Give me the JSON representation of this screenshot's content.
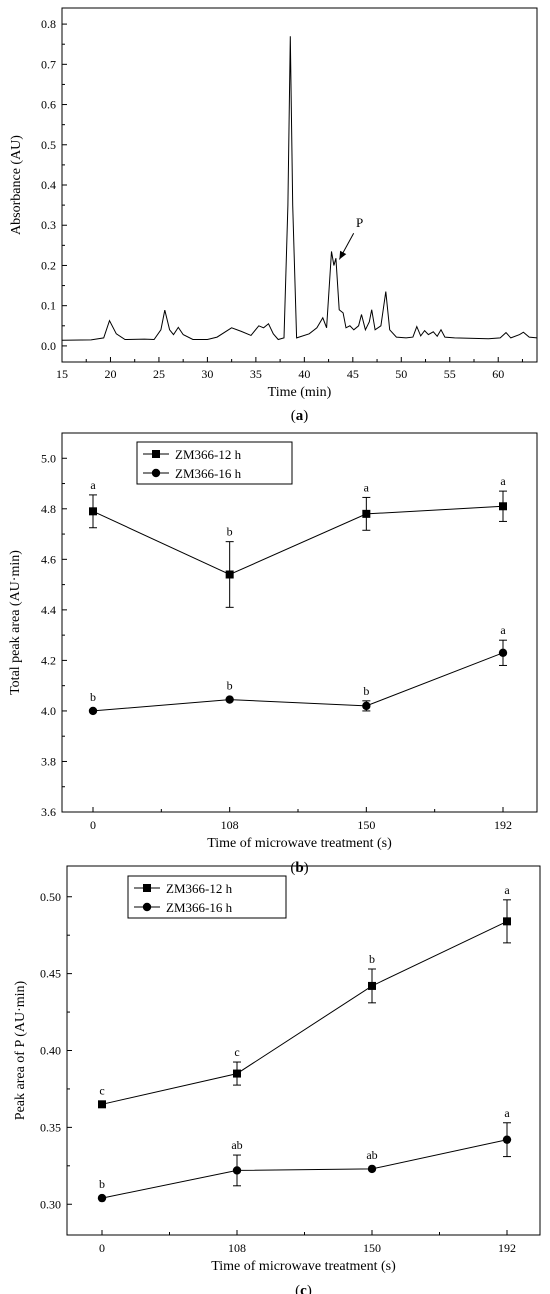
{
  "chart_data": [
    {
      "type": "line",
      "panel_label": "a",
      "xlabel": "Time (min)",
      "ylabel": "Absorbance (AU)",
      "xlim": [
        15,
        64
      ],
      "ylim": [
        -0.04,
        0.84
      ],
      "xticks": [
        15,
        20,
        25,
        30,
        35,
        40,
        45,
        50,
        55,
        60
      ],
      "yticks": [
        0.0,
        0.1,
        0.2,
        0.3,
        0.4,
        0.5,
        0.6,
        0.7,
        0.8
      ],
      "annotation": "P",
      "annotation_point": [
        43.2,
        0.21
      ],
      "annotation_text_at": [
        45.5,
        0.3
      ],
      "baseline": [
        [
          15,
          0.014
        ],
        [
          18,
          0.015
        ],
        [
          19.3,
          0.02
        ],
        [
          19.9,
          0.063
        ],
        [
          20.6,
          0.03
        ],
        [
          21.5,
          0.016
        ],
        [
          23.5,
          0.017
        ],
        [
          24.5,
          0.016
        ],
        [
          25.2,
          0.04
        ],
        [
          25.6,
          0.089
        ],
        [
          26.1,
          0.04
        ],
        [
          26.5,
          0.028
        ],
        [
          27,
          0.046
        ],
        [
          27.5,
          0.028
        ],
        [
          28.5,
          0.016
        ],
        [
          30,
          0.016
        ],
        [
          31,
          0.022
        ],
        [
          32.5,
          0.045
        ],
        [
          33.5,
          0.036
        ],
        [
          34.5,
          0.026
        ],
        [
          35.3,
          0.05
        ],
        [
          35.8,
          0.045
        ],
        [
          36.3,
          0.055
        ],
        [
          36.8,
          0.03
        ],
        [
          37.3,
          0.016
        ],
        [
          37.9,
          0.02
        ],
        [
          38.3,
          0.35
        ],
        [
          38.55,
          0.77
        ],
        [
          38.8,
          0.35
        ],
        [
          39.2,
          0.02
        ],
        [
          40.5,
          0.03
        ],
        [
          41.3,
          0.045
        ],
        [
          41.9,
          0.07
        ],
        [
          42.3,
          0.045
        ],
        [
          42.8,
          0.235
        ],
        [
          43.05,
          0.2
        ],
        [
          43.25,
          0.218
        ],
        [
          43.6,
          0.09
        ],
        [
          44,
          0.082
        ],
        [
          44.3,
          0.045
        ],
        [
          44.7,
          0.05
        ],
        [
          45.1,
          0.04
        ],
        [
          45.6,
          0.05
        ],
        [
          45.9,
          0.078
        ],
        [
          46.3,
          0.04
        ],
        [
          46.7,
          0.06
        ],
        [
          46.95,
          0.09
        ],
        [
          47.3,
          0.04
        ],
        [
          47.9,
          0.05
        ],
        [
          48.4,
          0.135
        ],
        [
          48.8,
          0.04
        ],
        [
          49.5,
          0.022
        ],
        [
          50.5,
          0.02
        ],
        [
          51.2,
          0.022
        ],
        [
          51.6,
          0.048
        ],
        [
          52,
          0.025
        ],
        [
          52.4,
          0.038
        ],
        [
          52.8,
          0.028
        ],
        [
          53.3,
          0.035
        ],
        [
          53.7,
          0.024
        ],
        [
          54.1,
          0.04
        ],
        [
          54.5,
          0.022
        ],
        [
          55.5,
          0.02
        ],
        [
          57,
          0.019
        ],
        [
          59,
          0.018
        ],
        [
          60.2,
          0.02
        ],
        [
          60.8,
          0.033
        ],
        [
          61.3,
          0.02
        ],
        [
          62.2,
          0.028
        ],
        [
          62.6,
          0.034
        ],
        [
          63.2,
          0.022
        ],
        [
          64,
          0.02
        ]
      ]
    },
    {
      "type": "line",
      "panel_label": "b",
      "xlabel": "Time of microwave treatment (s)",
      "ylabel": "Total peak area (AU·min)",
      "categories": [
        "0",
        "108",
        "150",
        "192"
      ],
      "ylim": [
        3.6,
        5.1
      ],
      "yticks": [
        3.6,
        3.8,
        4.0,
        4.2,
        4.4,
        4.6,
        4.8,
        5.0
      ],
      "legend_position": "top-left",
      "series": [
        {
          "name": "ZM366-12 h",
          "marker": "square",
          "values": [
            4.79,
            4.54,
            4.78,
            4.81
          ],
          "errors": [
            0.065,
            0.13,
            0.065,
            0.06
          ],
          "letters": [
            "a",
            "b",
            "a",
            "a"
          ]
        },
        {
          "name": "ZM366-16 h",
          "marker": "circle",
          "values": [
            4.0,
            4.045,
            4.02,
            4.23
          ],
          "errors": [
            0.0,
            0.0,
            0.02,
            0.05
          ],
          "letters": [
            "b",
            "b",
            "b",
            "a"
          ]
        }
      ]
    },
    {
      "type": "line",
      "panel_label": "c",
      "xlabel": "Time of microwave treatment (s)",
      "ylabel": "Peak area of P (AU·min)",
      "categories": [
        "0",
        "108",
        "150",
        "192"
      ],
      "ylim": [
        0.28,
        0.52
      ],
      "yticks": [
        0.3,
        0.35,
        0.4,
        0.45,
        0.5
      ],
      "ytick_labels": [
        "0.30",
        "0.35",
        "0.40",
        "0.45",
        "0.50"
      ],
      "legend_position": "top-left",
      "series": [
        {
          "name": "ZM366-12 h",
          "marker": "square",
          "values": [
            0.365,
            0.385,
            0.442,
            0.484
          ],
          "errors": [
            0.0,
            0.0075,
            0.011,
            0.014
          ],
          "letters": [
            "c",
            "c",
            "b",
            "a"
          ]
        },
        {
          "name": "ZM366-16 h",
          "marker": "circle",
          "values": [
            0.304,
            0.322,
            0.323,
            0.342
          ],
          "errors": [
            0.0,
            0.01,
            0.0,
            0.011
          ],
          "letters": [
            "b",
            "ab",
            "ab",
            "a"
          ]
        }
      ]
    }
  ]
}
